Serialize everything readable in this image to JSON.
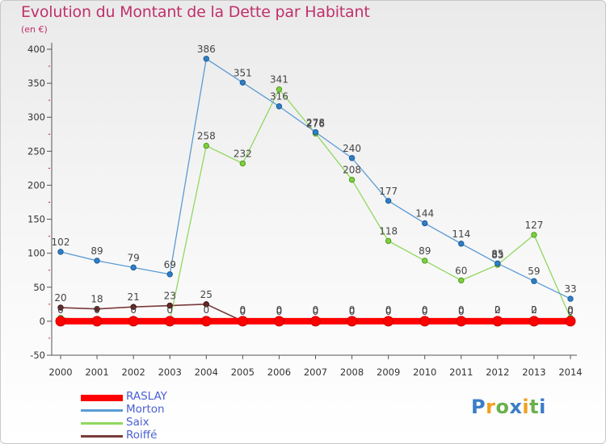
{
  "header": {
    "title": "Evolution du Montant de la Dette par Habitant",
    "unit": "(en €)"
  },
  "brand": {
    "letters": [
      {
        "ch": "P",
        "color": "#3a7dc8"
      },
      {
        "ch": "r",
        "color": "#f0a020"
      },
      {
        "ch": "o",
        "color": "#6ab04c"
      },
      {
        "ch": "x",
        "color": "#3a7dc8"
      },
      {
        "ch": "i",
        "color": "#f0a020"
      },
      {
        "ch": "t",
        "color": "#6ab04c"
      },
      {
        "ch": "i",
        "color": "#3a7dc8"
      }
    ]
  },
  "chart_data": {
    "type": "line",
    "title": "Evolution du Montant de la Dette par Habitant",
    "ylabel": "(en €)",
    "xlabel": "",
    "x": [
      "2000",
      "2001",
      "2002",
      "2003",
      "2004",
      "2005",
      "2006",
      "2007",
      "2008",
      "2009",
      "2010",
      "2011",
      "2012",
      "2013",
      "2014"
    ],
    "ylim": [
      -50,
      400
    ],
    "yticks": [
      -50,
      0,
      50,
      100,
      150,
      200,
      250,
      300,
      350,
      400
    ],
    "grid": false,
    "legend_position": "bottom-left",
    "series": [
      {
        "name": "RASLAY",
        "color": "#ff0000",
        "values": [
          0,
          0,
          0,
          0,
          0,
          0,
          0,
          0,
          0,
          0,
          0,
          0,
          0,
          0,
          0
        ],
        "labels": [
          "0",
          "0",
          "0",
          "0",
          "0",
          "0",
          "0",
          "0",
          "0",
          "0",
          "0",
          "0",
          "0",
          "0",
          "0"
        ]
      },
      {
        "name": "Morton",
        "color": "#5b9bd5",
        "values": [
          102,
          89,
          79,
          69,
          386,
          351,
          316,
          278,
          240,
          177,
          144,
          114,
          85,
          59,
          33
        ],
        "labels": [
          "102",
          "89",
          "79",
          "69",
          "386",
          "351",
          "316",
          "278",
          "240",
          "177",
          "144",
          "114",
          "85",
          "59",
          "33"
        ]
      },
      {
        "name": "Saix",
        "color": "#90d860",
        "values": [
          5,
          1,
          1,
          1,
          258,
          232,
          341,
          276,
          208,
          118,
          89,
          60,
          83,
          127,
          5
        ],
        "labels": [
          "",
          "",
          "",
          "",
          "258",
          "232",
          "341",
          "276",
          "208",
          "118",
          "89",
          "60",
          "83",
          "127",
          ""
        ]
      },
      {
        "name": "Roiffé",
        "color": "#7a3a3a",
        "values": [
          20,
          18,
          21,
          23,
          25,
          0,
          0,
          0,
          0,
          0,
          0,
          0,
          2,
          2,
          0
        ],
        "labels": [
          "20",
          "18",
          "21",
          "23",
          "25",
          "0",
          "0",
          "0",
          "0",
          "0",
          "0",
          "0",
          "2",
          "2",
          "0"
        ]
      }
    ]
  }
}
